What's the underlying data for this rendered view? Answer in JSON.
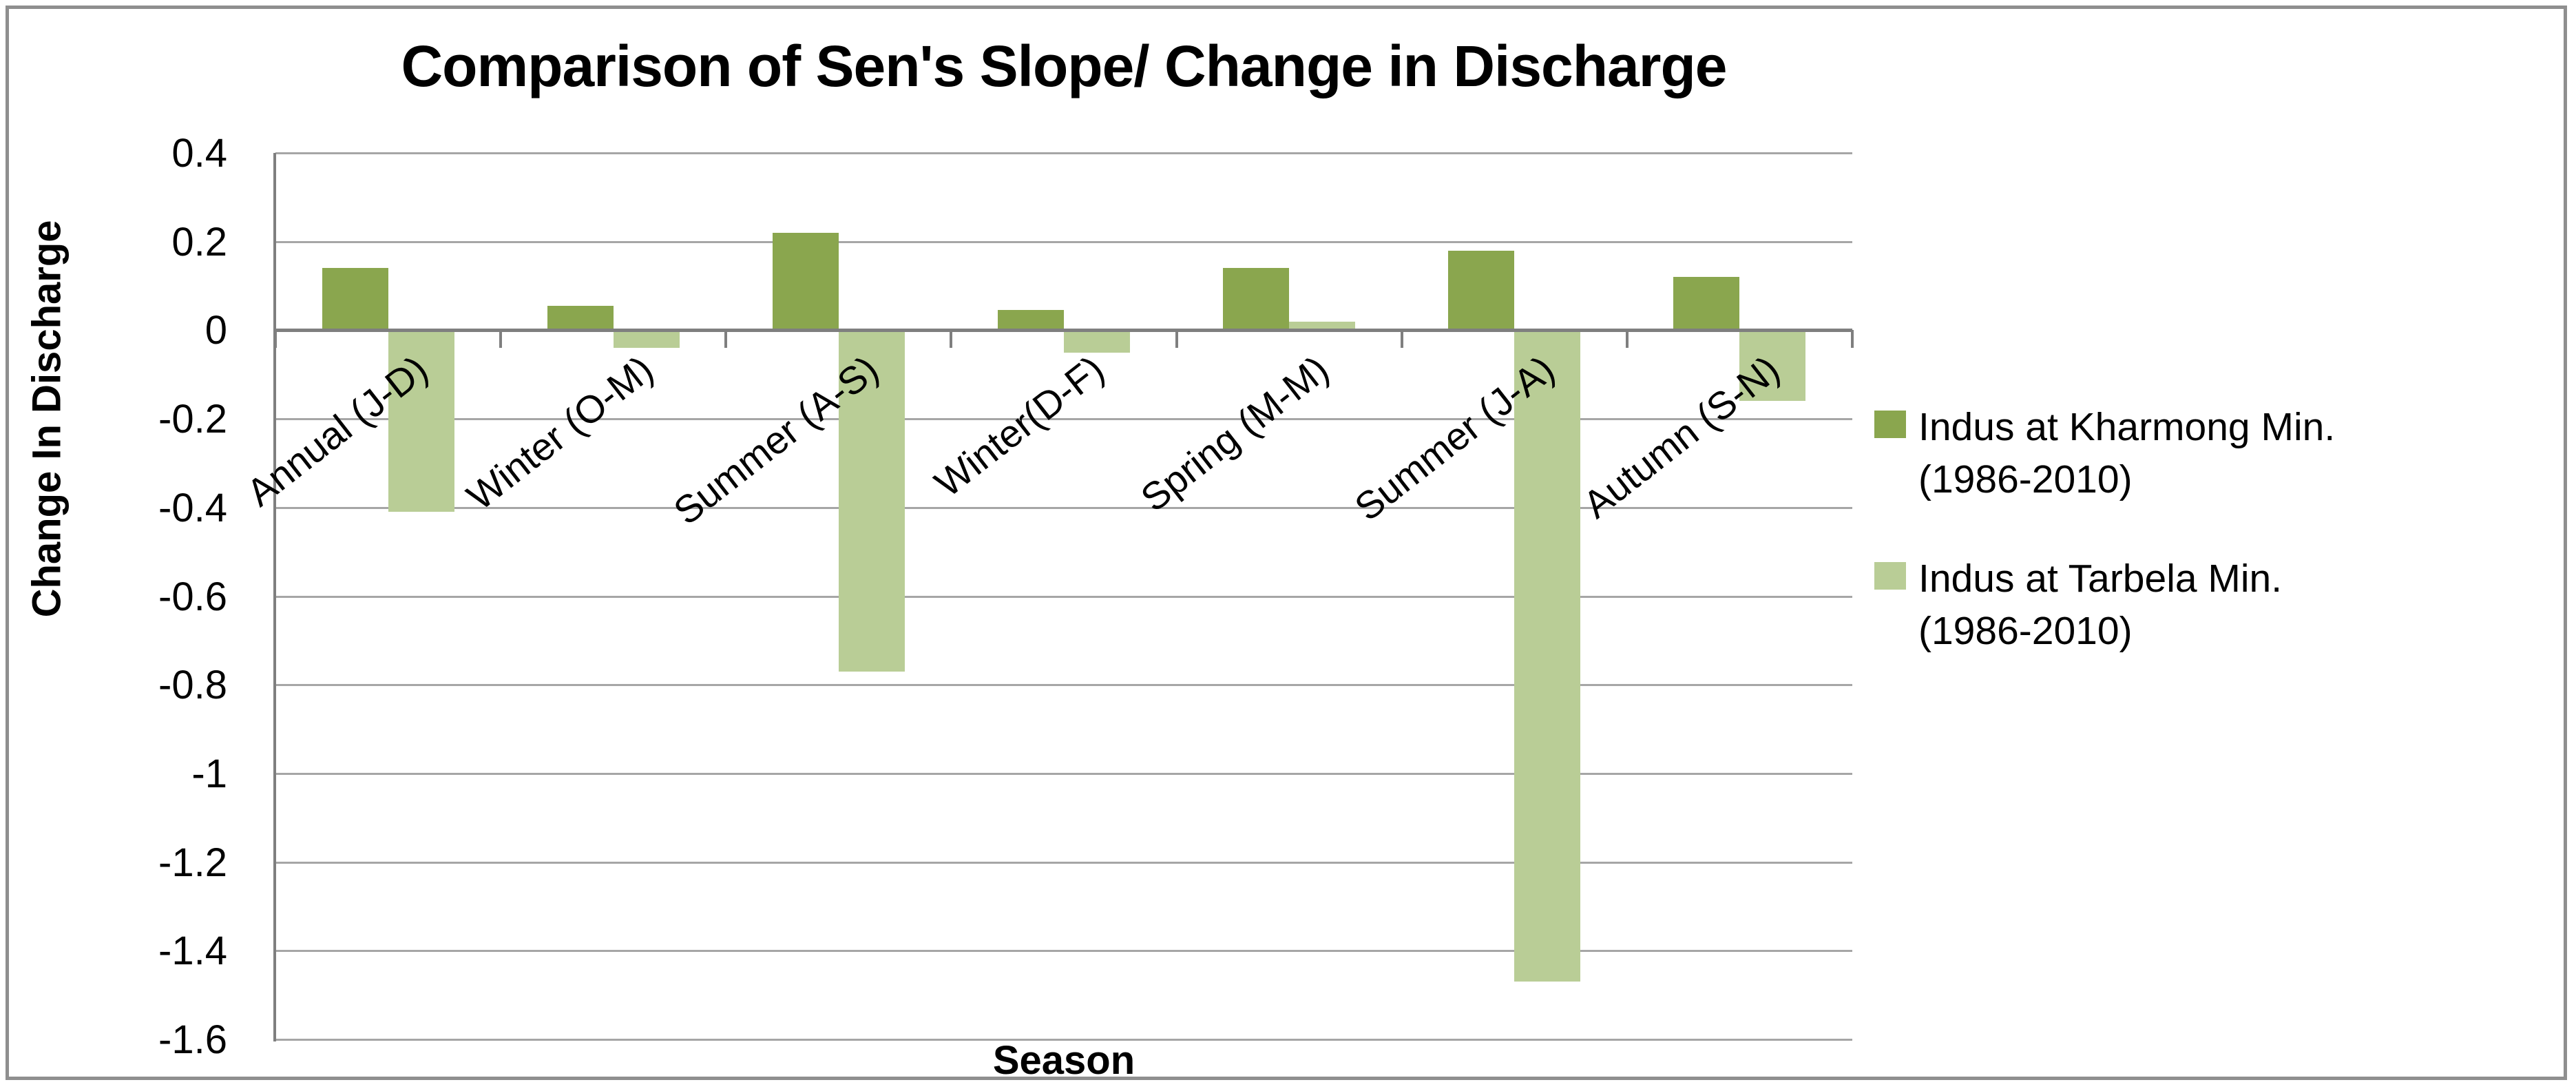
{
  "chart": {
    "title": "Comparison of Sen's Slope/ Change in Discharge",
    "y_axis_title": "Change In Discharge",
    "x_axis_title": "Season"
  },
  "colors": {
    "series_dark": "#8aa64e",
    "series_light": "#b9cd96",
    "gridline": "#a6a6a6",
    "axis_line": "#7f7f7f",
    "frame_border": "#8f8f8f",
    "text": "#000000"
  },
  "chart_data": {
    "type": "bar",
    "title": "Comparison of Sen's Slope/ Change in Discharge",
    "xlabel": "Season",
    "ylabel": "Change In Discharge",
    "categories": [
      "Annual (J-D)",
      "Winter (O-M)",
      "Summer (A-S)",
      "Winter(D-F)",
      "Spring (M-M)",
      "Summer (J-A)",
      "Autumn (S-N)"
    ],
    "series": [
      {
        "name": "Indus at Kharmong Min. (1986-2010)",
        "color": "#8aa64e",
        "values": [
          0.14,
          0.055,
          0.22,
          0.045,
          0.14,
          0.18,
          0.12
        ]
      },
      {
        "name": "Indus at Tarbela Min. (1986-2010)",
        "color": "#b9cd96",
        "values": [
          -0.41,
          -0.04,
          -0.77,
          -0.05,
          0.02,
          -1.47,
          -0.16
        ]
      }
    ],
    "ylim": [
      -1.6,
      0.4
    ],
    "ytick_step": 0.2,
    "ytick_labels": [
      "0.4",
      "0.2",
      "0",
      "-0.2",
      "-0.4",
      "-0.6",
      "-0.8",
      "-1",
      "-1.2",
      "-1.4",
      "-1.6"
    ],
    "grid": true,
    "legend_position": "right",
    "category_label_rotation_deg": -38
  },
  "legend": {
    "entries": [
      {
        "label": "Indus at Kharmong Min. (1986-2010)",
        "color": "#8aa64e"
      },
      {
        "label": "Indus at Tarbela Min. (1986-2010)",
        "color": "#b9cd96"
      }
    ]
  }
}
